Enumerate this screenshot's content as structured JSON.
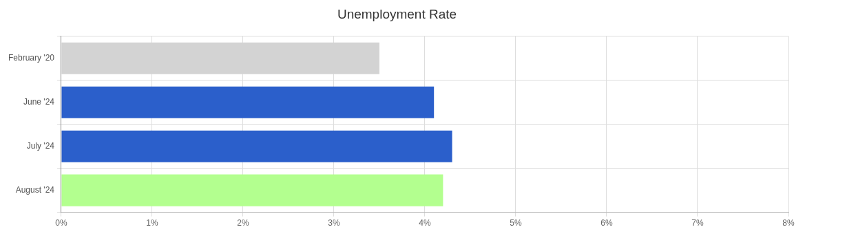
{
  "chart_data": {
    "type": "bar",
    "title": "Unemployment Rate",
    "orientation": "horizontal",
    "categories": [
      "February '20",
      "June '24",
      "July '24",
      "August '24"
    ],
    "values": [
      3.5,
      4.1,
      4.3,
      4.2
    ],
    "colors": [
      "#d3d3d3",
      "#2b5fcb",
      "#2b5fcb",
      "#b3ff8f"
    ],
    "xlim": [
      0,
      8
    ],
    "xticks": [
      {
        "value": 0,
        "label": "0%"
      },
      {
        "value": 1,
        "label": "1%"
      },
      {
        "value": 2,
        "label": "2%"
      },
      {
        "value": 3,
        "label": "3%"
      },
      {
        "value": 4,
        "label": "4%"
      },
      {
        "value": 5,
        "label": "5%"
      },
      {
        "value": 6,
        "label": "6%"
      },
      {
        "value": 7,
        "label": "7%"
      },
      {
        "value": 8,
        "label": "8%"
      }
    ],
    "grid": true
  }
}
